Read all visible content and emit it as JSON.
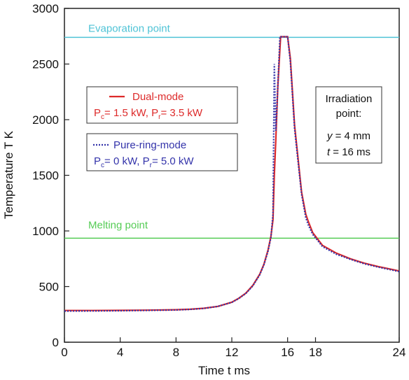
{
  "chart_data": {
    "type": "line",
    "title": "",
    "xlabel": "Time  t  ms",
    "ylabel": "Temperature  T  K",
    "xlim": [
      0,
      24
    ],
    "ylim": [
      0,
      3000
    ],
    "xticks": [
      0,
      4,
      8,
      12,
      16,
      18,
      24
    ],
    "yticks": [
      0,
      500,
      1000,
      1500,
      2000,
      2500,
      3000
    ],
    "grid": false,
    "reference_lines": [
      {
        "label": "Evaporation point",
        "y": 2740,
        "color": "#4fc3d6"
      },
      {
        "label": "Melting point",
        "y": 935,
        "color": "#55cc55"
      }
    ],
    "series": [
      {
        "name": "Dual-mode",
        "condition_main": "P",
        "condition_sub": "c",
        "condition_rest": "= 1.5 kW, P",
        "condition_sub2": "r",
        "condition_end": "= 3.5 kW",
        "color": "#dd2a2a",
        "style": "solid",
        "x": [
          0,
          2,
          4,
          6,
          8,
          9,
          10,
          11,
          12,
          12.5,
          13,
          13.5,
          14,
          14.3,
          14.6,
          14.8,
          14.95,
          15.05,
          15.15,
          15.3,
          15.5,
          15.7,
          16.0,
          16.2,
          16.5,
          17.0,
          17.3,
          17.5,
          17.8,
          18.5,
          19.5,
          20.5,
          21.5,
          22.5,
          24
        ],
        "y": [
          285,
          285,
          286,
          288,
          292,
          296,
          305,
          322,
          360,
          395,
          440,
          510,
          610,
          700,
          830,
          950,
          1100,
          1500,
          1800,
          2300,
          2745,
          2745,
          2745,
          2550,
          1950,
          1350,
          1150,
          1080,
          985,
          870,
          800,
          750,
          710,
          680,
          640
        ]
      },
      {
        "name": "Pure-ring-mode",
        "condition_main": "P",
        "condition_sub": "c",
        "condition_rest": "= 0 kW, P",
        "condition_sub2": "r",
        "condition_end": "= 5.0 kW",
        "color": "#3333aa",
        "style": "dotted",
        "x": [
          0,
          2,
          4,
          6,
          8,
          9,
          10,
          11,
          12,
          12.5,
          13,
          13.5,
          14,
          14.3,
          14.6,
          14.8,
          14.95,
          15.05,
          15.15,
          15.3,
          15.45,
          15.6,
          16.0,
          16.2,
          16.5,
          17.0,
          17.3,
          17.5,
          17.8,
          18.5,
          19.5,
          20.5,
          21.5,
          22.5,
          24
        ],
        "y": [
          280,
          281,
          283,
          286,
          290,
          295,
          304,
          322,
          358,
          393,
          438,
          505,
          605,
          695,
          820,
          940,
          1150,
          2500,
          1900,
          2300,
          2745,
          2745,
          2745,
          2520,
          1920,
          1330,
          1120,
          1050,
          970,
          860,
          790,
          745,
          705,
          675,
          635
        ]
      }
    ],
    "annotation": {
      "line1": "Irradiation",
      "line2": "point:",
      "line3_var": "y",
      "line3_rest": " = 4 mm",
      "line4_var": "t",
      "line4_rest": " = 16 ms"
    },
    "colors": {
      "evaporation": "#4fc3d6",
      "melting": "#55cc55",
      "dual": "#dd2a2a",
      "ring": "#3333aa"
    }
  }
}
